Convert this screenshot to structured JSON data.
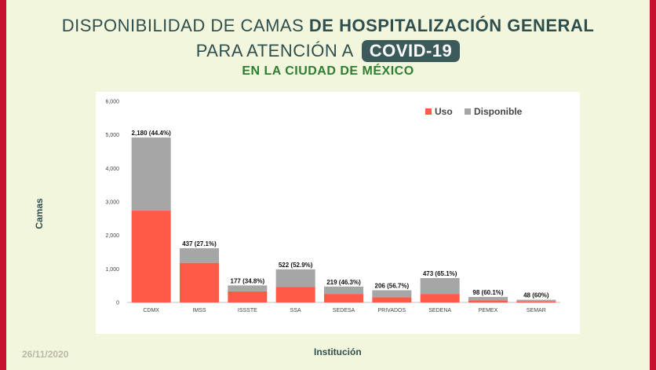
{
  "header": {
    "title_line1_regular": "DISPONIBILIDAD DE CAMAS ",
    "title_line1_bold": "DE HOSPITALIZACIÓN GENERAL",
    "title_line2": "PARA ATENCIÓN A",
    "covid_badge": "COVID-19",
    "subtitle": "EN LA CIUDAD DE MÉXICO"
  },
  "footer": {
    "date": "26/11/2020"
  },
  "colors": {
    "uso": "#ff5a48",
    "disponible": "#a6a6a6",
    "background": "#f2f6dc",
    "border": "#c8102e"
  },
  "chart_data": {
    "type": "bar",
    "stacked": true,
    "xlabel": "Institución",
    "ylabel": "Camas",
    "ylim": [
      0,
      6000
    ],
    "yticks": [
      "0",
      "1,000",
      "2,000",
      "3,000",
      "4,000",
      "5,000",
      "6,000"
    ],
    "ytick_values": [
      0,
      1000,
      2000,
      3000,
      4000,
      5000,
      6000
    ],
    "grid": false,
    "legend_position": "top-right",
    "categories": [
      "CDMX",
      "IMSS",
      "ISSSTE",
      "SSA",
      "SEDESA",
      "PRIVADOS",
      "SEDENA",
      "PEMEX",
      "SEMAR"
    ],
    "series": [
      {
        "name": "Uso",
        "values": [
          2740,
          1180,
          330,
          465,
          255,
          157,
          255,
          65,
          32
        ]
      },
      {
        "name": "Disponible",
        "values": [
          2180,
          437,
          177,
          522,
          219,
          206,
          473,
          98,
          48
        ]
      }
    ],
    "bar_labels": [
      "2,180 (44.4%)",
      "437 (27.1%)",
      "177 (34.8%)",
      "522 (52.9%)",
      "219 (46.3%)",
      "206 (56.7%)",
      "473 (65.1%)",
      "98 (60.1%)",
      "48 (60%)"
    ]
  }
}
